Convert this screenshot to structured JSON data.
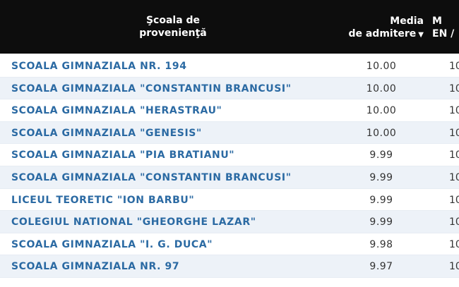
{
  "header": {
    "school_line1": "Şcoala de",
    "school_line2": "provenienţă",
    "media_line1": "Media",
    "media_line2": "de admitere",
    "next_line1": "M",
    "next_line2": "EN /"
  },
  "rows": [
    {
      "school": "SCOALA GIMNAZIALA NR. 194",
      "media": "10.00",
      "next": "10"
    },
    {
      "school": "SCOALA GIMNAZIALA \"CONSTANTIN BRANCUSI\"",
      "media": "10.00",
      "next": "10"
    },
    {
      "school": "SCOALA GIMNAZIALA \"HERASTRAU\"",
      "media": "10.00",
      "next": "10"
    },
    {
      "school": "SCOALA GIMNAZIALA \"GENESIS\"",
      "media": "10.00",
      "next": "10"
    },
    {
      "school": "SCOALA GIMNAZIALA \"PIA BRATIANU\"",
      "media": "9.99",
      "next": "10"
    },
    {
      "school": "SCOALA GIMNAZIALA \"CONSTANTIN BRANCUSI\"",
      "media": "9.99",
      "next": "10"
    },
    {
      "school": "LICEUL TEORETIC \"ION BARBU\"",
      "media": "9.99",
      "next": "10"
    },
    {
      "school": "COLEGIUL NATIONAL \"GHEORGHE LAZAR\"",
      "media": "9.99",
      "next": "10"
    },
    {
      "school": "SCOALA GIMNAZIALA \"I. G. DUCA\"",
      "media": "9.98",
      "next": "10"
    },
    {
      "school": "SCOALA GIMNAZIALA NR. 97",
      "media": "9.97",
      "next": "10"
    }
  ]
}
